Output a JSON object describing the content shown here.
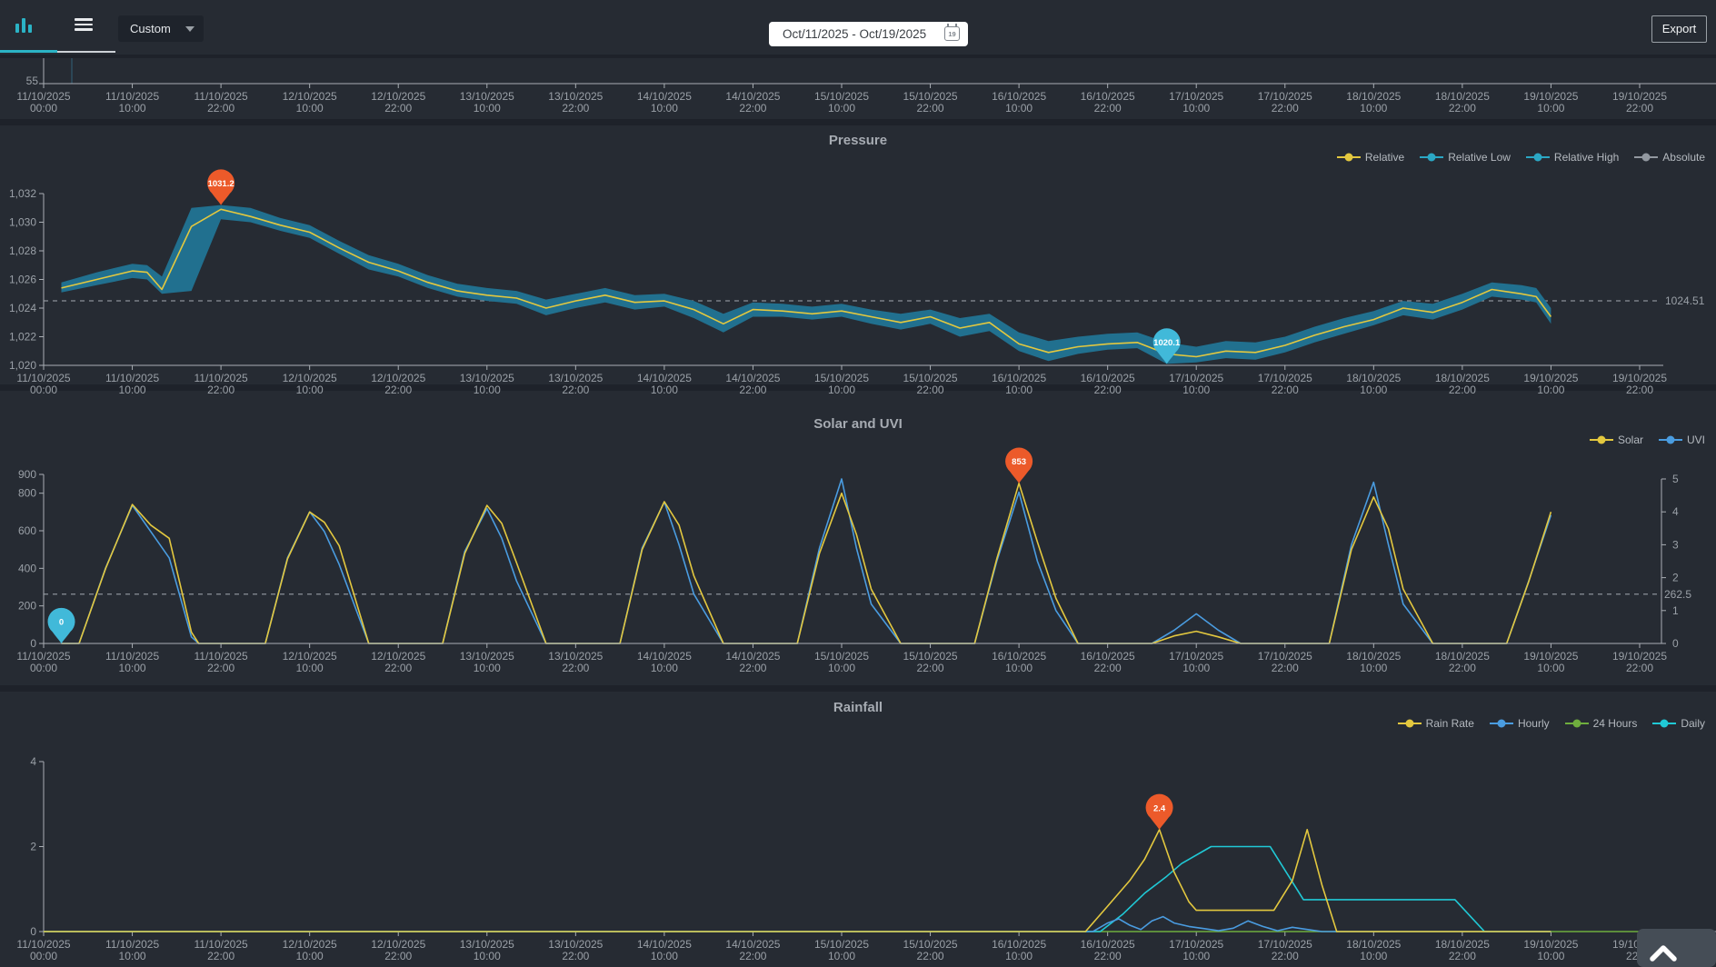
{
  "topbar": {
    "range_mode": "Custom",
    "date_range": "Oct/11/2025 - Oct/19/2025",
    "calendar_day": "19",
    "export_label": "Export"
  },
  "colors": {
    "background": "#262b33",
    "panel_gap": "#1e222a",
    "accent_teal": "#2bb3c5",
    "axis_line": "#a9aeb4",
    "axis_text": "#9aa0a7",
    "band_fill": "#21708f",
    "yellow": "#e3c83f",
    "blue": "#4a9ce0",
    "green": "#6fae3e",
    "cyan": "#20c9d6",
    "gray": "#9298a0",
    "marker_max": "#ec5a2a",
    "marker_min": "#41b9d9",
    "dashed": "#8b9199"
  },
  "x_axis_labels": [
    {
      "d": "11/10/2025",
      "t": "00:00"
    },
    {
      "d": "11/10/2025",
      "t": "10:00"
    },
    {
      "d": "11/10/2025",
      "t": "22:00"
    },
    {
      "d": "12/10/2025",
      "t": "10:00"
    },
    {
      "d": "12/10/2025",
      "t": "22:00"
    },
    {
      "d": "13/10/2025",
      "t": "10:00"
    },
    {
      "d": "13/10/2025",
      "t": "22:00"
    },
    {
      "d": "14/10/2025",
      "t": "10:00"
    },
    {
      "d": "14/10/2025",
      "t": "22:00"
    },
    {
      "d": "15/10/2025",
      "t": "10:00"
    },
    {
      "d": "15/10/2025",
      "t": "22:00"
    },
    {
      "d": "16/10/2025",
      "t": "10:00"
    },
    {
      "d": "16/10/2025",
      "t": "22:00"
    },
    {
      "d": "17/10/2025",
      "t": "10:00"
    },
    {
      "d": "17/10/2025",
      "t": "22:00"
    },
    {
      "d": "18/10/2025",
      "t": "10:00"
    },
    {
      "d": "18/10/2025",
      "t": "22:00"
    },
    {
      "d": "19/10/2025",
      "t": "10:00"
    },
    {
      "d": "19/10/2025",
      "t": "22:00"
    }
  ],
  "chart_data": [
    {
      "id": "previous",
      "type": "line",
      "y_tick_label": "55"
    },
    {
      "id": "pressure",
      "type": "line",
      "title": "Pressure",
      "ylim": [
        1020,
        1032
      ],
      "y_ticks": [
        {
          "v": 1020,
          "label": "1,020"
        },
        {
          "v": 1022,
          "label": "1,022"
        },
        {
          "v": 1024,
          "label": "1,024"
        },
        {
          "v": 1026,
          "label": "1,026"
        },
        {
          "v": 1028,
          "label": "1,028"
        },
        {
          "v": 1030,
          "label": "1,030"
        },
        {
          "v": 1032,
          "label": "1,032"
        }
      ],
      "average_line": {
        "value": 1024.51,
        "label": "1024.51"
      },
      "series": [
        {
          "name": "Relative",
          "color": "#e3c83f"
        },
        {
          "name": "Relative Low",
          "color": "#2ba7c4"
        },
        {
          "name": "Relative High",
          "color": "#2ba7c4"
        },
        {
          "name": "Absolute",
          "color": "#9298a0"
        }
      ],
      "t": [
        2,
        6,
        10,
        12,
        14,
        18,
        22,
        26,
        30,
        34,
        38,
        42,
        46,
        50,
        54,
        58,
        62,
        66,
        70,
        74,
        78,
        82,
        86,
        90,
        94,
        98,
        102,
        106,
        110,
        114,
        118,
        122,
        126,
        130,
        134,
        138,
        142,
        146,
        150,
        154,
        158,
        162,
        166,
        170,
        174,
        178,
        182,
        186,
        190,
        194,
        198,
        200,
        202
      ],
      "relative": [
        1025.4,
        1026.0,
        1026.6,
        1026.5,
        1025.3,
        1029.7,
        1030.9,
        1030.4,
        1029.8,
        1029.3,
        1028.2,
        1027.2,
        1026.6,
        1025.8,
        1025.2,
        1024.9,
        1024.7,
        1024.0,
        1024.5,
        1024.9,
        1024.4,
        1024.5,
        1023.9,
        1022.9,
        1023.9,
        1023.8,
        1023.6,
        1023.8,
        1023.4,
        1023.0,
        1023.4,
        1022.6,
        1023.0,
        1021.5,
        1020.9,
        1021.3,
        1021.5,
        1021.6,
        1020.8,
        1020.6,
        1021.0,
        1020.9,
        1021.4,
        1022.1,
        1022.7,
        1023.2,
        1024.0,
        1023.7,
        1024.4,
        1025.3,
        1025.0,
        1024.8,
        1023.4
      ],
      "relative_low": [
        1025.1,
        1025.6,
        1026.1,
        1026.0,
        1025.0,
        1025.2,
        1030.2,
        1030.0,
        1029.4,
        1028.9,
        1027.8,
        1026.7,
        1026.2,
        1025.4,
        1024.8,
        1024.5,
        1024.3,
        1023.5,
        1024.0,
        1024.4,
        1023.9,
        1024.1,
        1023.3,
        1022.3,
        1023.4,
        1023.4,
        1023.2,
        1023.4,
        1022.9,
        1022.5,
        1022.9,
        1022.0,
        1022.4,
        1021.0,
        1020.3,
        1020.8,
        1021.1,
        1021.2,
        1020.1,
        1020.2,
        1020.5,
        1020.4,
        1020.9,
        1021.6,
        1022.2,
        1022.8,
        1023.5,
        1023.2,
        1023.9,
        1024.8,
        1024.6,
        1024.4,
        1022.9
      ],
      "relative_high": [
        1025.8,
        1026.5,
        1027.1,
        1027.0,
        1026.2,
        1031.0,
        1031.2,
        1031.0,
        1030.3,
        1029.8,
        1028.7,
        1027.7,
        1027.1,
        1026.3,
        1025.7,
        1025.4,
        1025.2,
        1024.6,
        1025.0,
        1025.4,
        1024.9,
        1025.0,
        1024.5,
        1023.6,
        1024.4,
        1024.3,
        1024.1,
        1024.3,
        1023.9,
        1023.6,
        1023.9,
        1023.3,
        1023.6,
        1022.3,
        1021.7,
        1022.0,
        1022.2,
        1022.3,
        1021.6,
        1021.3,
        1021.7,
        1021.6,
        1022.0,
        1022.7,
        1023.3,
        1023.8,
        1024.5,
        1024.3,
        1025.0,
        1025.8,
        1025.6,
        1025.4,
        1024.0
      ],
      "markers": [
        {
          "label": "1031.2",
          "t": 22,
          "v": 1031.2,
          "color": "#ec5a2a"
        },
        {
          "label": "1020.1",
          "t": 150,
          "v": 1020.1,
          "color": "#41b9d9"
        }
      ]
    },
    {
      "id": "solar_uvi",
      "type": "line",
      "title": "Solar and UVI",
      "ylim": [
        0,
        900
      ],
      "y_ticks": [
        0,
        200,
        400,
        600,
        800,
        900
      ],
      "y2lim": [
        0,
        5
      ],
      "y2_ticks": [
        0,
        1,
        2,
        3,
        4,
        5
      ],
      "average_line": {
        "value": 262.5,
        "label": "262.5"
      },
      "series": [
        {
          "name": "Solar",
          "color": "#e3c83f"
        },
        {
          "name": "UVI",
          "color": "#4a9ce0"
        }
      ],
      "t": [
        2,
        4,
        7,
        10,
        12.5,
        15,
        18,
        19,
        28,
        31,
        34,
        36,
        38,
        42,
        52,
        55,
        58,
        60,
        62,
        66,
        76,
        79,
        82,
        84,
        86,
        90,
        100,
        103,
        106,
        108,
        110,
        114,
        124,
        127,
        130,
        132.5,
        135,
        138,
        148,
        151,
        154,
        157,
        160,
        172,
        175,
        178,
        180,
        182,
        186,
        196,
        199,
        202
      ],
      "solar": [
        0,
        0,
        400,
        740,
        630,
        560,
        60,
        0,
        0,
        450,
        700,
        645,
        520,
        0,
        0,
        480,
        735,
        640,
        430,
        0,
        0,
        500,
        755,
        630,
        360,
        0,
        0,
        480,
        800,
        580,
        290,
        0,
        0,
        450,
        853,
        540,
        240,
        0,
        0,
        40,
        65,
        35,
        0,
        0,
        500,
        780,
        610,
        290,
        0,
        0,
        330,
        700
      ],
      "uvi": [
        0,
        0,
        2.3,
        4.2,
        3.4,
        2.6,
        0.2,
        0,
        0,
        2.6,
        4.0,
        3.4,
        2.4,
        0,
        0,
        2.8,
        4.1,
        3.2,
        1.9,
        0,
        0,
        2.9,
        4.3,
        3.0,
        1.5,
        0,
        0,
        2.9,
        5.0,
        2.9,
        1.2,
        0,
        0,
        2.5,
        4.6,
        2.5,
        1.0,
        0,
        0,
        0.4,
        0.9,
        0.4,
        0,
        0,
        3.0,
        4.9,
        3.0,
        1.2,
        0,
        0,
        1.9,
        3.9
      ],
      "markers": [
        {
          "label": "0",
          "t": 2,
          "v": 0,
          "color": "#41b9d9"
        },
        {
          "label": "853",
          "t": 130,
          "v": 853,
          "color": "#ec5a2a"
        }
      ]
    },
    {
      "id": "rainfall",
      "type": "line",
      "title": "Rainfall",
      "ylim": [
        0,
        4
      ],
      "y_ticks": [
        0,
        2,
        4
      ],
      "series": [
        {
          "name": "Rain Rate",
          "color": "#e3c83f"
        },
        {
          "name": "Hourly",
          "color": "#4a9ce0"
        },
        {
          "name": "24 Hours",
          "color": "#6fae3e"
        },
        {
          "name": "Daily",
          "color": "#20c9d6"
        }
      ],
      "rain_rate": [
        [
          0,
          0
        ],
        [
          139,
          0
        ],
        [
          142,
          0.6
        ],
        [
          145,
          1.2
        ],
        [
          147,
          1.7
        ],
        [
          149,
          2.4
        ],
        [
          151,
          1.4
        ],
        [
          153,
          0.7
        ],
        [
          154,
          0.5
        ],
        [
          164.5,
          0.5
        ],
        [
          167,
          1.2
        ],
        [
          169,
          2.4
        ],
        [
          171,
          1.1
        ],
        [
          173,
          0
        ],
        [
          202,
          0
        ]
      ],
      "hourly": [
        [
          0,
          0
        ],
        [
          140,
          0
        ],
        [
          142,
          0.2
        ],
        [
          143.5,
          0.3
        ],
        [
          145,
          0.15
        ],
        [
          146.5,
          0.05
        ],
        [
          148,
          0.25
        ],
        [
          149.5,
          0.35
        ],
        [
          151,
          0.2
        ],
        [
          153,
          0.12
        ],
        [
          155,
          0.07
        ],
        [
          157,
          0.02
        ],
        [
          159,
          0.08
        ],
        [
          161,
          0.25
        ],
        [
          163,
          0.12
        ],
        [
          165,
          0.02
        ],
        [
          167,
          0.1
        ],
        [
          169,
          0.05
        ],
        [
          171,
          0
        ],
        [
          202,
          0
        ]
      ],
      "hours_24": [
        [
          0,
          0
        ],
        [
          216.5,
          0
        ]
      ],
      "daily": [
        [
          0,
          0
        ],
        [
          141,
          0
        ],
        [
          144,
          0.4
        ],
        [
          147,
          0.9
        ],
        [
          150,
          1.3
        ],
        [
          152,
          1.6
        ],
        [
          156,
          2.0
        ],
        [
          164,
          2.0
        ],
        [
          168.5,
          0.75
        ],
        [
          189,
          0.75
        ],
        [
          193,
          0
        ],
        [
          202,
          0
        ]
      ],
      "markers": [
        {
          "label": "2.4",
          "t": 149,
          "v": 2.4,
          "color": "#ec5a2a"
        }
      ]
    }
  ]
}
